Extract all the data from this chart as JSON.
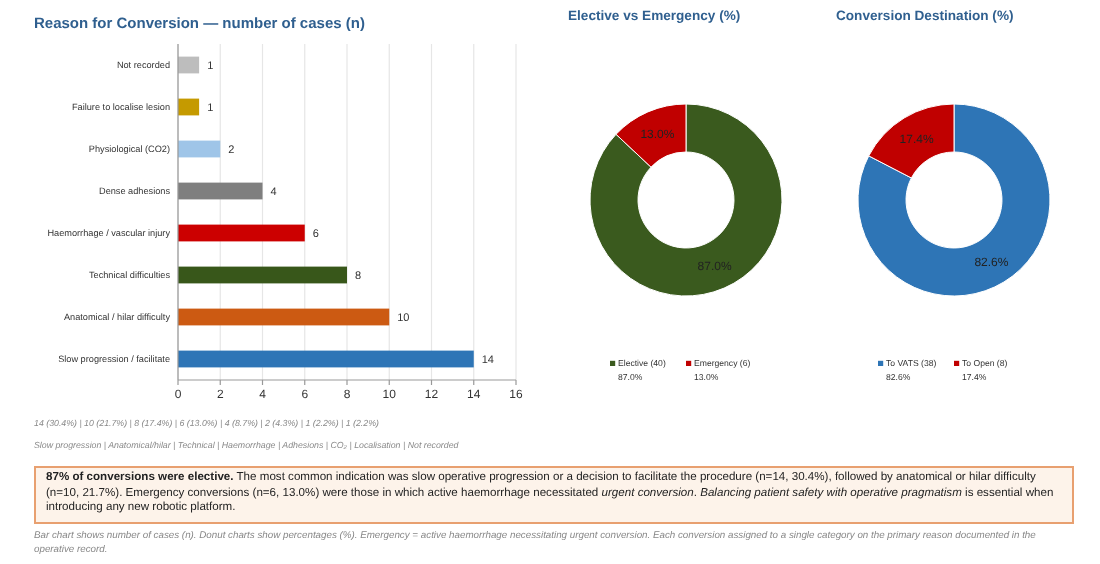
{
  "chart_data": [
    {
      "type": "bar",
      "orientation": "horizontal",
      "title": "Reason for Conversion — number of cases (n)",
      "categories": [
        "Not recorded",
        "Failure to localise lesion",
        "Physiological (CO2)",
        "Dense adhesions",
        "Haemorrhage / vascular injury",
        "Technical difficulties",
        "Anatomical / hilar difficulty",
        "Slow progression / facilitate"
      ],
      "values": [
        1,
        1,
        2,
        4,
        6,
        8,
        10,
        14
      ],
      "colors": [
        "#bdbdbd",
        "#c59a00",
        "#9fc5e8",
        "#7f7f7f",
        "#cc0000",
        "#38571a",
        "#cc5a12",
        "#2e75b6"
      ],
      "xlim": [
        0,
        16
      ],
      "xticks": [
        0,
        2,
        4,
        6,
        8,
        10,
        12,
        14,
        16
      ],
      "grid": "x",
      "data_labels": true,
      "annotations": [
        "14 (30.4%) | 10 (21.7%) | 8 (17.4%) | 6 (13.0%) | 4 (8.7%) | 2 (4.3%) | 1 (2.2%) | 1 (2.2%)",
        "Slow progression | Anatomical/hilar | Technical | Haemorrhage | Adhesions | CO₂ | Localisation | Not recorded"
      ]
    },
    {
      "type": "donut",
      "title": "Elective vs Emergency (%)",
      "categories": [
        "Elective (40)",
        "Emergency (6)"
      ],
      "values": [
        87.0,
        13.0
      ],
      "value_labels": [
        "87.0%",
        "13.0%"
      ],
      "colors": [
        "#3a5a1e",
        "#c00000"
      ],
      "legend": "bottom"
    },
    {
      "type": "donut",
      "title": "Conversion Destination (%)",
      "categories": [
        "To VATS (38)",
        "To Open (8)"
      ],
      "values": [
        82.6,
        17.4
      ],
      "value_labels": [
        "82.6%",
        "17.4%"
      ],
      "colors": [
        "#2e75b6",
        "#c00000"
      ],
      "legend": "bottom"
    },
    {
      "type": "other",
      "annotations": [
        "87% of conversions were elective.",
        " The most common indication was slow operative progression or a decision to facilitate the procedure (n=14, 30.4%), followed by anatomical or hilar difficulty (n=10, 21.7%). Emergency conversions (n=6, 13.0%) were those in which active haemorrhage necessitated ",
        "urgent conversion",
        ". ",
        "Balancing patient safety with operative pragmatism",
        " is essential when introducing any new robotic platform."
      ]
    },
    {
      "type": "other",
      "annotations": [
        "Bar chart shows number of cases (n). Donut charts show percentages (%). Emergency = active haemorrhage necessitating urgent conversion. Each conversion assigned to a single category on the primary reason documented in the operative record."
      ]
    }
  ]
}
